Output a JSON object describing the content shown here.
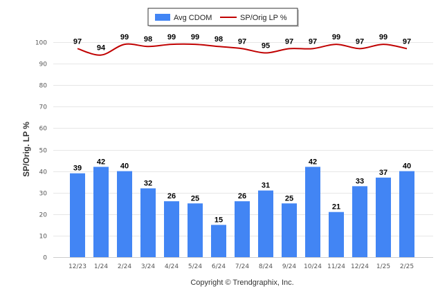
{
  "chart_data": {
    "type": "bar",
    "categories": [
      "12/23",
      "1/24",
      "2/24",
      "3/24",
      "4/24",
      "5/24",
      "6/24",
      "7/24",
      "8/24",
      "9/24",
      "10/24",
      "11/24",
      "12/24",
      "1/25",
      "2/25"
    ],
    "series": [
      {
        "name": "Avg CDOM",
        "kind": "bar",
        "color": "#4285F4",
        "values": [
          39,
          42,
          40,
          32,
          26,
          25,
          15,
          26,
          31,
          25,
          42,
          21,
          33,
          37,
          40
        ]
      },
      {
        "name": "SP/Orig LP %",
        "kind": "line",
        "color": "#C00000",
        "values": [
          97,
          94,
          99,
          98,
          99,
          99,
          98,
          97,
          95,
          97,
          97,
          99,
          97,
          99,
          97
        ]
      }
    ],
    "ylabel": "SP/Orig. LP %",
    "ylim": [
      0,
      100
    ],
    "yticks": [
      0,
      10,
      20,
      30,
      40,
      50,
      60,
      70,
      80,
      90,
      100
    ],
    "grid": true,
    "legend_position": "top-center",
    "data_labels": true
  },
  "footer": {
    "copyright": "Copyright © Trendgraphix, Inc."
  }
}
